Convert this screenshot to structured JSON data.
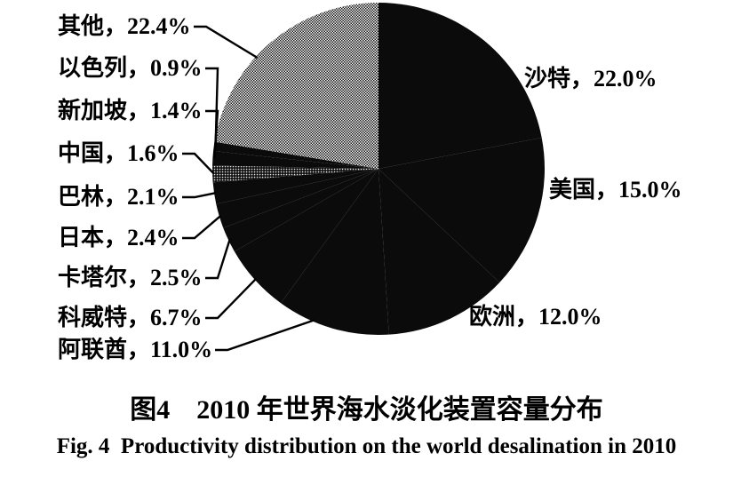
{
  "chart_data": {
    "type": "pie",
    "title": "图4　2010 年世界海水淡化装置容量分布",
    "title_en": "Fig. 4  Productivity distribution on the world desalination in 2010",
    "ink": "#0b0b0b",
    "legend": "none",
    "start_angle_deg": 0,
    "direction": "clockwise",
    "units": "%",
    "slices": [
      {
        "id": "saudi",
        "label": "沙特",
        "value": 22.0,
        "display": "沙特，22.0%",
        "fill": "black",
        "side": "right"
      },
      {
        "id": "usa",
        "label": "美国",
        "value": 15.0,
        "display": "美国，15.0%",
        "fill": "black",
        "side": "right"
      },
      {
        "id": "europe",
        "label": "欧洲",
        "value": 12.0,
        "display": "欧洲，12.0%",
        "fill": "black",
        "side": "right"
      },
      {
        "id": "uae",
        "label": "阿联酋",
        "value": 11.0,
        "display": "阿联酋，11.0%",
        "fill": "black",
        "side": "left"
      },
      {
        "id": "kuwait",
        "label": "科威特",
        "value": 6.7,
        "display": "科威特，6.7%",
        "fill": "black",
        "side": "left"
      },
      {
        "id": "qatar",
        "label": "卡塔尔",
        "value": 2.5,
        "display": "卡塔尔，2.5%",
        "fill": "black",
        "side": "left"
      },
      {
        "id": "japan",
        "label": "日本",
        "value": 2.4,
        "display": "日本，2.4%",
        "fill": "black",
        "side": "left"
      },
      {
        "id": "bahrain",
        "label": "巴林",
        "value": 2.1,
        "display": "巴林，2.1%",
        "fill": "black",
        "side": "left"
      },
      {
        "id": "china",
        "label": "中国",
        "value": 1.6,
        "display": "中国，1.6%",
        "fill": "dots",
        "side": "left"
      },
      {
        "id": "singapore",
        "label": "新加坡",
        "value": 1.4,
        "display": "新加坡，1.4%",
        "fill": "black",
        "side": "left"
      },
      {
        "id": "israel",
        "label": "以色列",
        "value": 0.9,
        "display": "以色列，0.9%",
        "fill": "black",
        "side": "left"
      },
      {
        "id": "other",
        "label": "其他",
        "value": 22.4,
        "display": "其他，22.4%",
        "fill": "checker",
        "side": "left"
      }
    ]
  }
}
